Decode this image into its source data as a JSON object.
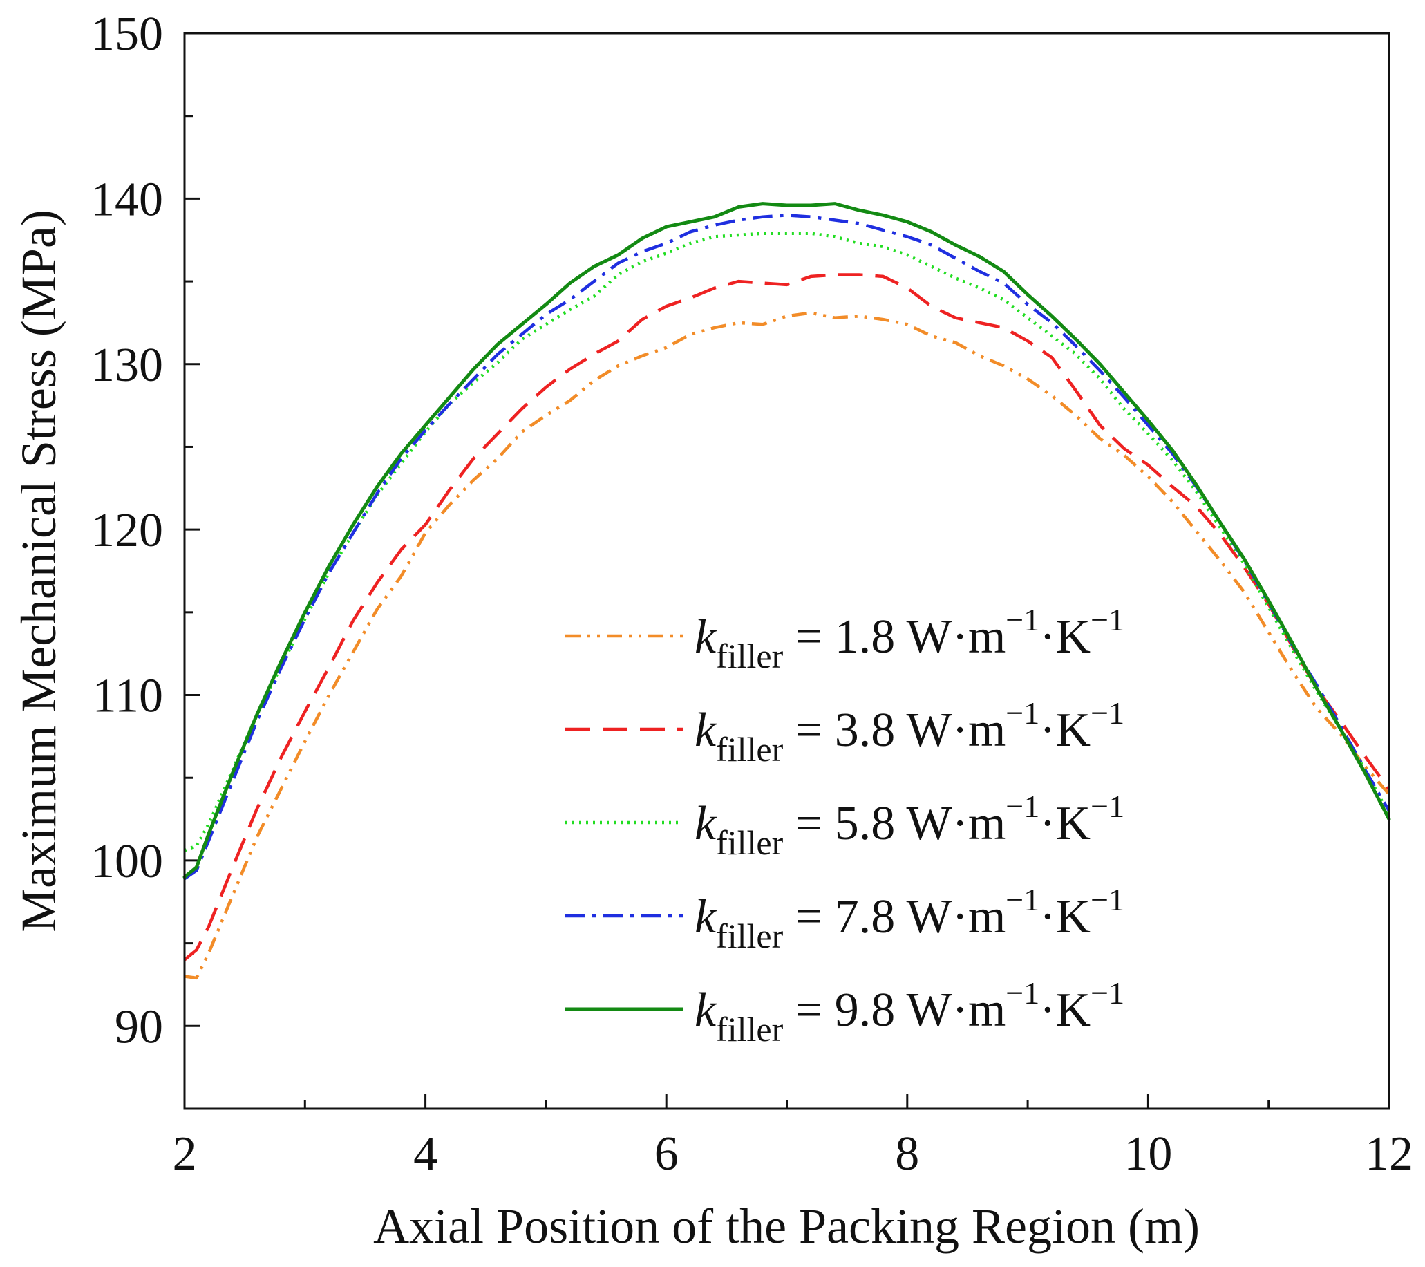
{
  "chart_data": {
    "type": "line",
    "title": "",
    "xlabel": "Axial Position of the Packing Region (m)",
    "ylabel": "Maximum Mechanical Stress (MPa)",
    "xlim": [
      2,
      12
    ],
    "ylim": [
      85,
      150
    ],
    "x_ticks": [
      "2",
      "4",
      "6",
      "8",
      "10",
      "12"
    ],
    "y_ticks": [
      "90",
      "100",
      "110",
      "120",
      "130",
      "140",
      "150"
    ],
    "grid": false,
    "legend_position": "lower-right",
    "series": [
      {
        "name": "k_filler = 1.8 W·m⁻¹·K⁻¹",
        "legend_parts": {
          "symbol": "k",
          "subscript": "filler",
          "eq": " = 1.8 W·m",
          "sup1": "−1",
          "mid": "·K",
          "sup2": "−1"
        },
        "color": "#F28C28",
        "dash": "style-dashdotdot",
        "x": [
          2.0,
          2.1,
          2.2,
          2.4,
          2.6,
          2.8,
          3.0,
          3.2,
          3.4,
          3.6,
          3.8,
          4.0,
          4.2,
          4.4,
          4.6,
          4.8,
          5.0,
          5.2,
          5.4,
          5.6,
          5.8,
          6.0,
          6.2,
          6.4,
          6.6,
          6.8,
          7.0,
          7.2,
          7.4,
          7.6,
          7.8,
          8.0,
          8.2,
          8.4,
          8.6,
          8.8,
          9.0,
          9.2,
          9.4,
          9.6,
          9.8,
          10.0,
          10.2,
          10.4,
          10.6,
          10.8,
          11.0,
          11.2,
          11.4,
          11.6,
          11.8,
          12.0
        ],
        "y": [
          93.0,
          92.9,
          94.4,
          97.9,
          101.4,
          104.3,
          107.2,
          110.0,
          112.6,
          115.2,
          117.2,
          119.8,
          121.5,
          123.0,
          124.3,
          125.9,
          126.9,
          127.8,
          129.0,
          129.9,
          130.5,
          131.0,
          131.8,
          132.2,
          132.5,
          132.4,
          132.9,
          133.1,
          132.8,
          132.9,
          132.7,
          132.4,
          131.7,
          131.3,
          130.5,
          129.9,
          129.1,
          128.1,
          126.9,
          125.5,
          124.5,
          123.2,
          121.7,
          119.9,
          118.1,
          116.2,
          113.8,
          111.4,
          109.2,
          107.6,
          105.7,
          104.0
        ]
      },
      {
        "name": "k_filler = 3.8 W·m⁻¹·K⁻¹",
        "legend_parts": {
          "symbol": "k",
          "subscript": "filler",
          "eq": " = 3.8 W·m",
          "sup1": "−1",
          "mid": "·K",
          "sup2": "−1"
        },
        "color": "#EE2222",
        "dash": "style-dashed",
        "x": [
          2.0,
          2.1,
          2.2,
          2.4,
          2.6,
          2.8,
          3.0,
          3.2,
          3.4,
          3.6,
          3.8,
          4.0,
          4.2,
          4.4,
          4.6,
          4.8,
          5.0,
          5.2,
          5.4,
          5.6,
          5.8,
          6.0,
          6.2,
          6.4,
          6.6,
          6.8,
          7.0,
          7.2,
          7.4,
          7.6,
          7.8,
          8.0,
          8.2,
          8.4,
          8.6,
          8.8,
          9.0,
          9.2,
          9.4,
          9.6,
          9.8,
          10.0,
          10.2,
          10.4,
          10.6,
          10.8,
          11.0,
          11.2,
          11.4,
          11.6,
          11.8,
          12.0
        ],
        "y": [
          94.0,
          94.6,
          96.0,
          99.6,
          103.1,
          106.2,
          109.0,
          111.7,
          114.5,
          116.8,
          118.8,
          120.3,
          122.4,
          124.3,
          125.8,
          127.3,
          128.6,
          129.7,
          130.6,
          131.4,
          132.7,
          133.5,
          134.0,
          134.6,
          135.0,
          134.9,
          134.8,
          135.3,
          135.4,
          135.4,
          135.3,
          134.6,
          133.5,
          132.8,
          132.5,
          132.2,
          131.4,
          130.4,
          128.4,
          126.3,
          124.9,
          123.9,
          122.6,
          121.4,
          119.7,
          117.7,
          115.5,
          112.9,
          110.4,
          108.4,
          106.3,
          104.3
        ]
      },
      {
        "name": "k_filler = 5.8 W·m⁻¹·K⁻¹",
        "legend_parts": {
          "symbol": "k",
          "subscript": "filler",
          "eq": " = 5.8 W·m",
          "sup1": "−1",
          "mid": "·K",
          "sup2": "−1"
        },
        "color": "#22DD22",
        "dash": "style-dotted",
        "x": [
          2.0,
          2.1,
          2.2,
          2.4,
          2.6,
          2.8,
          3.0,
          3.2,
          3.4,
          3.6,
          3.8,
          4.0,
          4.2,
          4.4,
          4.6,
          4.8,
          5.0,
          5.2,
          5.4,
          5.6,
          5.8,
          6.0,
          6.2,
          6.4,
          6.6,
          6.8,
          7.0,
          7.2,
          7.4,
          7.6,
          7.8,
          8.0,
          8.2,
          8.4,
          8.6,
          8.8,
          9.0,
          9.2,
          9.4,
          9.6,
          9.8,
          10.0,
          10.2,
          10.4,
          10.6,
          10.8,
          11.0,
          11.2,
          11.4,
          11.6,
          11.8,
          12.0
        ],
        "y": [
          100.6,
          100.9,
          102.2,
          105.5,
          108.8,
          111.7,
          114.6,
          117.4,
          119.8,
          122.1,
          124.0,
          125.9,
          127.6,
          128.9,
          130.1,
          131.5,
          132.4,
          133.3,
          134.1,
          135.4,
          136.2,
          136.7,
          137.3,
          137.7,
          137.8,
          137.9,
          137.9,
          137.9,
          137.7,
          137.3,
          137.1,
          136.6,
          135.9,
          135.2,
          134.6,
          133.9,
          132.8,
          131.7,
          130.6,
          129.1,
          127.3,
          125.8,
          124.2,
          122.3,
          120.1,
          117.9,
          115.3,
          112.7,
          110.2,
          107.9,
          105.5,
          102.8
        ]
      },
      {
        "name": "k_filler = 7.8 W·m⁻¹·K⁻¹",
        "legend_parts": {
          "symbol": "k",
          "subscript": "filler",
          "eq": " = 7.8 W·m",
          "sup1": "−1",
          "mid": "·K",
          "sup2": "−1"
        },
        "color": "#1F2FE0",
        "dash": "style-dashdot",
        "x": [
          2.0,
          2.1,
          2.2,
          2.4,
          2.6,
          2.8,
          3.0,
          3.2,
          3.4,
          3.6,
          3.8,
          4.0,
          4.2,
          4.4,
          4.6,
          4.8,
          5.0,
          5.2,
          5.4,
          5.6,
          5.8,
          6.0,
          6.2,
          6.4,
          6.6,
          6.8,
          7.0,
          7.2,
          7.4,
          7.6,
          7.8,
          8.0,
          8.2,
          8.4,
          8.6,
          8.8,
          9.0,
          9.2,
          9.4,
          9.6,
          9.8,
          10.0,
          10.2,
          10.4,
          10.6,
          10.8,
          11.0,
          11.2,
          11.4,
          11.6,
          11.8,
          12.0
        ],
        "y": [
          98.9,
          99.4,
          101.2,
          104.8,
          108.4,
          111.6,
          114.6,
          117.4,
          119.8,
          122.2,
          124.3,
          126.0,
          127.6,
          129.1,
          130.6,
          131.8,
          133.0,
          133.9,
          135.0,
          136.1,
          136.8,
          137.3,
          138.0,
          138.4,
          138.7,
          138.9,
          139.0,
          138.9,
          138.7,
          138.5,
          138.1,
          137.7,
          137.2,
          136.4,
          135.6,
          134.9,
          133.6,
          132.5,
          131.1,
          129.6,
          128.0,
          126.3,
          124.6,
          122.6,
          120.4,
          118.1,
          115.6,
          113.0,
          110.6,
          108.1,
          105.5,
          103.0
        ]
      },
      {
        "name": "k_filler = 9.8 W·m⁻¹·K⁻¹",
        "legend_parts": {
          "symbol": "k",
          "subscript": "filler",
          "eq": " = 9.8 W·m",
          "sup1": "−1",
          "mid": "·K",
          "sup2": "−1"
        },
        "color": "#138A13",
        "dash": "style-solid",
        "x": [
          2.0,
          2.1,
          2.2,
          2.4,
          2.6,
          2.8,
          3.0,
          3.2,
          3.4,
          3.6,
          3.8,
          4.0,
          4.2,
          4.4,
          4.6,
          4.8,
          5.0,
          5.2,
          5.4,
          5.6,
          5.8,
          6.0,
          6.2,
          6.4,
          6.6,
          6.8,
          7.0,
          7.2,
          7.4,
          7.6,
          7.8,
          8.0,
          8.2,
          8.4,
          8.6,
          8.8,
          9.0,
          9.2,
          9.4,
          9.6,
          9.8,
          10.0,
          10.2,
          10.4,
          10.6,
          10.8,
          11.0,
          11.2,
          11.4,
          11.6,
          11.8,
          12.0
        ],
        "y": [
          99.0,
          99.6,
          101.6,
          105.3,
          108.8,
          112.0,
          115.0,
          117.8,
          120.3,
          122.6,
          124.6,
          126.3,
          128.0,
          129.7,
          131.2,
          132.4,
          133.6,
          134.9,
          135.9,
          136.6,
          137.6,
          138.3,
          138.6,
          138.9,
          139.5,
          139.7,
          139.6,
          139.6,
          139.7,
          139.3,
          139.0,
          138.6,
          138.0,
          137.2,
          136.5,
          135.6,
          134.2,
          132.9,
          131.5,
          130.0,
          128.3,
          126.6,
          124.8,
          122.7,
          120.4,
          118.2,
          115.7,
          113.1,
          110.4,
          107.9,
          105.3,
          102.5
        ]
      }
    ]
  }
}
